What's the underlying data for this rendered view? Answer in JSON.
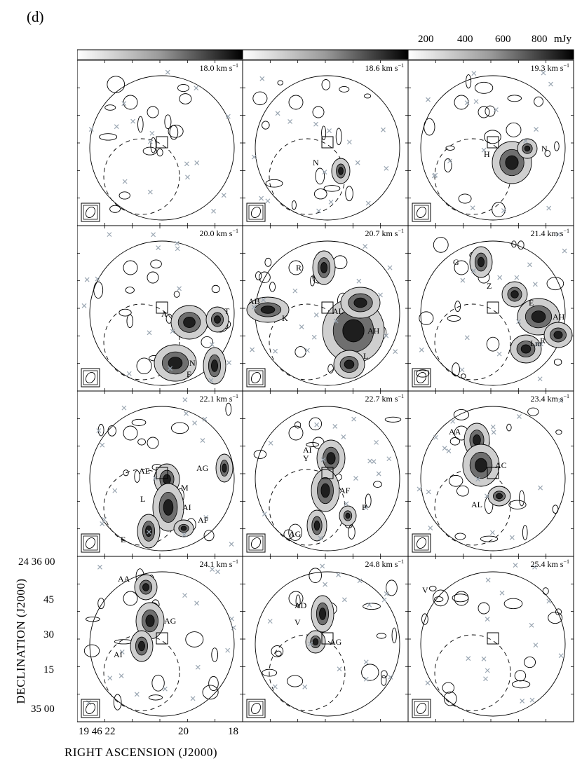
{
  "figure": {
    "panel_tag": "(d)",
    "colorbar": {
      "ticks": [
        "200",
        "400",
        "600",
        "800"
      ],
      "unit": "mJy"
    },
    "velocity_unit": "km s",
    "velocity_sup": "−1",
    "panels": [
      {
        "velocity": "18.0",
        "labels": []
      },
      {
        "velocity": "18.6",
        "labels": [
          "N"
        ]
      },
      {
        "velocity": "19.3",
        "labels": [
          "H",
          "N"
        ]
      },
      {
        "velocity": "20.0",
        "labels": [
          "A",
          "N",
          "F",
          "T"
        ]
      },
      {
        "velocity": "20.7",
        "labels": [
          "AB",
          "AH",
          "AL",
          "L",
          "R",
          "K"
        ]
      },
      {
        "velocity": "21.4",
        "labels": [
          "Z",
          "AH",
          "Lm",
          "R",
          "G",
          "E"
        ]
      },
      {
        "velocity": "22.1",
        "labels": [
          "AE",
          "AI",
          "E",
          "AF",
          "AG",
          "M",
          "L"
        ]
      },
      {
        "velocity": "22.7",
        "labels": [
          "AI",
          "AF",
          "AG",
          "P",
          "Y"
        ]
      },
      {
        "velocity": "23.4",
        "labels": [
          "AA",
          "AC",
          "AL"
        ]
      },
      {
        "velocity": "24.1",
        "labels": [
          "AA",
          "AG",
          "AI"
        ]
      },
      {
        "velocity": "24.8",
        "labels": [
          "AD",
          "AG",
          "V"
        ]
      },
      {
        "velocity": "25.4",
        "labels": [
          "V"
        ]
      }
    ],
    "y_axis": {
      "label": "DECLINATION (J2000)",
      "ticks": [
        "24 36 00",
        "45",
        "30",
        "15",
        "35 00"
      ]
    },
    "x_axis": {
      "label": "RIGHT ASCENSION (J2000)",
      "ticks": [
        "19 46 22",
        "20",
        "18"
      ]
    },
    "colors": {
      "ink": "#000000",
      "marker": "#9aa6b2"
    }
  }
}
